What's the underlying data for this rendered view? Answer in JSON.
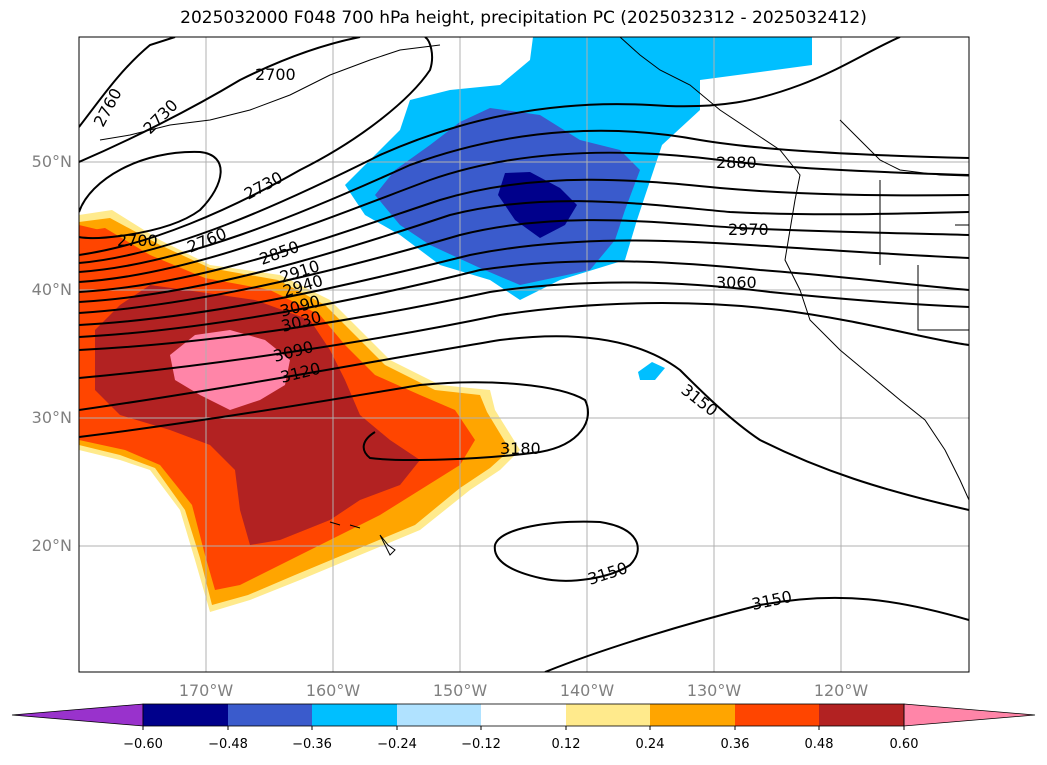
{
  "title": "2025032000 F048 700 hPa height, precipitation PC (2025032312 - 2025032412)",
  "lat_labels": [
    "50°N",
    "40°N",
    "30°N",
    "20°N"
  ],
  "lon_labels": [
    "170°W",
    "160°W",
    "150°W",
    "140°W",
    "130°W",
    "120°W"
  ],
  "contour_labels": [
    "2760",
    "2730",
    "2700",
    "2730",
    "2760",
    "2700",
    "2850",
    "2910",
    "2940",
    "3090",
    "3030",
    "3090",
    "3120",
    "2880",
    "2970",
    "3060",
    "3150",
    "3180",
    "3150",
    "3150"
  ],
  "colorbar": {
    "ticks": [
      "−0.60",
      "−0.48",
      "−0.36",
      "−0.24",
      "−0.12",
      "0.12",
      "0.24",
      "0.36",
      "0.48",
      "0.60"
    ],
    "colors": [
      "#9932cc",
      "#00008b",
      "#3a5bcc",
      "#00bfff",
      "#b0e2ff",
      "#ffffff",
      "#ffea8c",
      "#ffa500",
      "#ff4500",
      "#b22222",
      "#ff85a8"
    ]
  },
  "colors": {
    "contour": "#000000",
    "grid": "#b0b0b0",
    "axis_label": "#808080"
  }
}
